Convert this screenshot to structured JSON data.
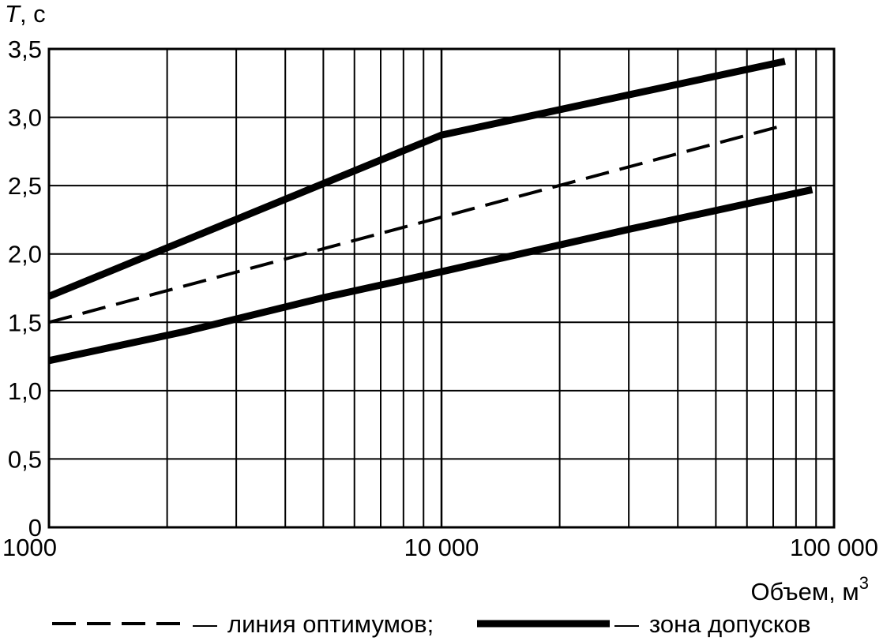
{
  "chart_data": {
    "type": "line",
    "x_scale": "log",
    "xlim": [
      1000,
      100000
    ],
    "ylim": [
      0,
      3.5
    ],
    "grid": true,
    "ylabel": {
      "symbol": "T",
      "unit": ", с"
    },
    "xlabel": {
      "text": "Объем, м",
      "superscript": "3"
    },
    "x_ticks": [
      {
        "value": 1000,
        "label": "1000"
      },
      {
        "value": 10000,
        "label": "10 000"
      },
      {
        "value": 100000,
        "label": "100 000"
      }
    ],
    "y_ticks": [
      {
        "value": 0,
        "label": "0"
      },
      {
        "value": 0.5,
        "label": "0,5"
      },
      {
        "value": 1.0,
        "label": "1,0"
      },
      {
        "value": 1.5,
        "label": "1,5"
      },
      {
        "value": 2.0,
        "label": "2,0"
      },
      {
        "value": 2.5,
        "label": "2,5"
      },
      {
        "value": 3.0,
        "label": "3,0"
      },
      {
        "value": 3.5,
        "label": "3,5"
      }
    ],
    "series": [
      {
        "name": "зона допусков",
        "style": "thick",
        "points": [
          [
            1000,
            1.69
          ],
          [
            10000,
            2.87
          ],
          [
            75000,
            3.41
          ]
        ]
      },
      {
        "name": "линия оптимумов",
        "style": "dashed",
        "points": [
          [
            1000,
            1.5
          ],
          [
            72000,
            2.93
          ]
        ]
      },
      {
        "name": "зона допусков",
        "style": "thick",
        "points": [
          [
            1000,
            1.22
          ],
          [
            2200,
            1.43
          ],
          [
            5000,
            1.68
          ],
          [
            10000,
            1.87
          ],
          [
            30000,
            2.18
          ],
          [
            88000,
            2.47
          ]
        ]
      }
    ],
    "legend": {
      "placement": "bottom",
      "separator": "—",
      "items": [
        {
          "style": "dashed",
          "label": "линия оптимумов;"
        },
        {
          "style": "thick",
          "label": "зона допусков"
        }
      ]
    }
  }
}
